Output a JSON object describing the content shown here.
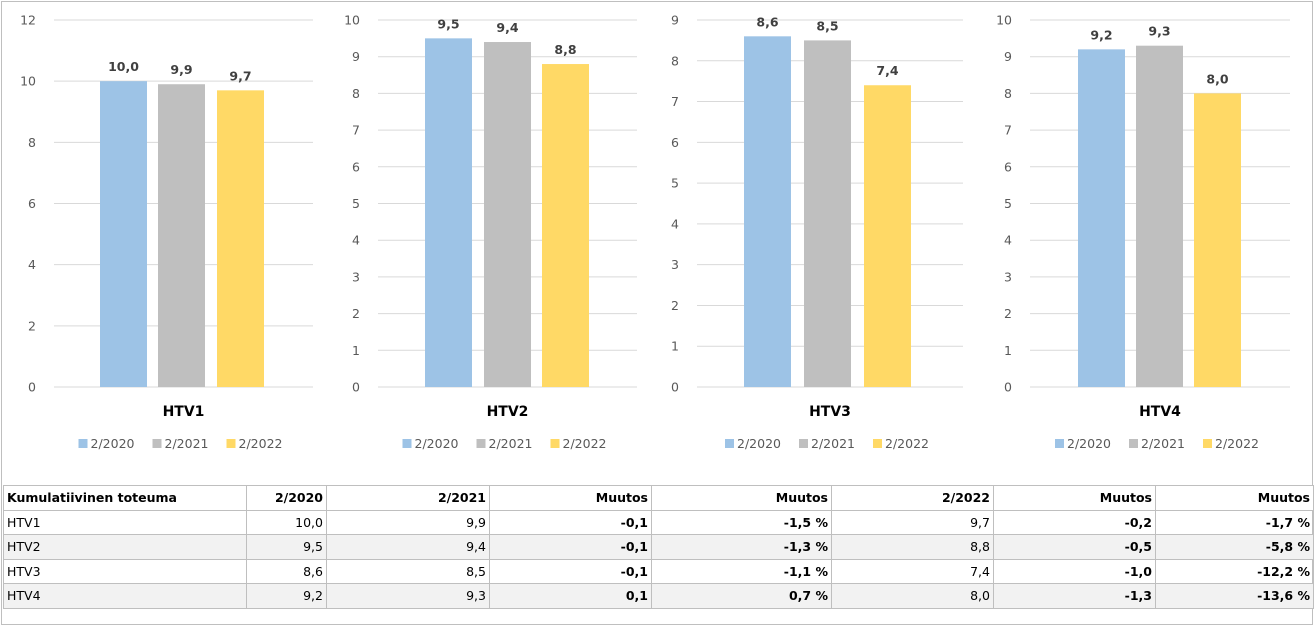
{
  "colors": {
    "2/2020": "#9dc3e6",
    "2/2021": "#bfbfbf",
    "2/2022": "#ffd966",
    "grid": "#d9d9d9"
  },
  "chart_data": [
    {
      "type": "bar",
      "title": "HTV1",
      "categories": [
        "2/2020",
        "2/2021",
        "2/2022"
      ],
      "values": [
        10.0,
        9.9,
        9.7
      ],
      "labels": [
        "10,0",
        "9,9",
        "9,7"
      ],
      "ylim": [
        0,
        12
      ],
      "yticks": [
        0,
        2,
        4,
        6,
        8,
        10,
        12
      ],
      "legend": "bottom",
      "grid": true
    },
    {
      "type": "bar",
      "title": "HTV2",
      "categories": [
        "2/2020",
        "2/2021",
        "2/2022"
      ],
      "values": [
        9.5,
        9.4,
        8.8
      ],
      "labels": [
        "9,5",
        "9,4",
        "8,8"
      ],
      "ylim": [
        0,
        10
      ],
      "yticks": [
        0,
        1,
        2,
        3,
        4,
        5,
        6,
        7,
        8,
        9,
        10
      ],
      "legend": "bottom",
      "grid": true
    },
    {
      "type": "bar",
      "title": "HTV3",
      "categories": [
        "2/2020",
        "2/2021",
        "2/2022"
      ],
      "values": [
        8.6,
        8.5,
        7.4
      ],
      "labels": [
        "8,6",
        "8,5",
        "7,4"
      ],
      "ylim": [
        0,
        9
      ],
      "yticks": [
        0,
        1,
        2,
        3,
        4,
        5,
        6,
        7,
        8,
        9
      ],
      "legend": "bottom",
      "grid": true
    },
    {
      "type": "bar",
      "title": "HTV4",
      "categories": [
        "2/2020",
        "2/2021",
        "2/2022"
      ],
      "values": [
        9.2,
        9.3,
        8.0
      ],
      "labels": [
        "9,2",
        "9,3",
        "8,0"
      ],
      "ylim": [
        0,
        10
      ],
      "yticks": [
        0,
        1,
        2,
        3,
        4,
        5,
        6,
        7,
        8,
        9,
        10
      ],
      "legend": "bottom",
      "grid": true
    }
  ],
  "table": {
    "headers": [
      "Kumulatiivinen toteuma",
      "2/2020",
      "2/2021",
      "Muutos",
      "Muutos",
      "2/2022",
      "Muutos",
      "Muutos"
    ],
    "rows": [
      [
        "HTV1",
        "10,0",
        "9,9",
        "-0,1",
        "-1,5 %",
        "9,7",
        "-0,2",
        "-1,7 %"
      ],
      [
        "HTV2",
        "9,5",
        "9,4",
        "-0,1",
        "-1,3 %",
        "8,8",
        "-0,5",
        "-5,8 %"
      ],
      [
        "HTV3",
        "8,6",
        "8,5",
        "-0,1",
        "-1,1 %",
        "7,4",
        "-1,0",
        "-12,2 %"
      ],
      [
        "HTV4",
        "9,2",
        "9,3",
        "0,1",
        "0,7 %",
        "8,0",
        "-1,3",
        "-13,6 %"
      ]
    ]
  }
}
